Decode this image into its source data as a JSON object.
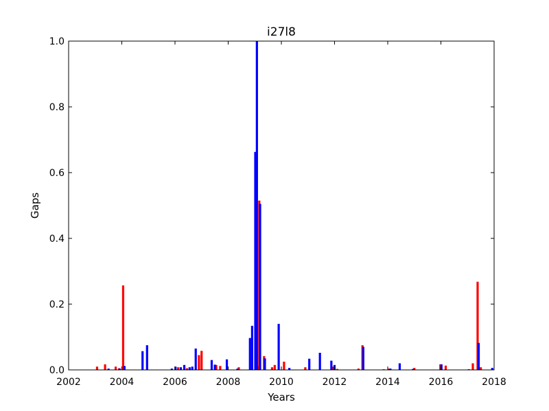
{
  "chart_data": {
    "type": "bar",
    "title": "i27l8",
    "xlabel": "Years",
    "ylabel": "Gaps",
    "xlim": [
      2002,
      2018
    ],
    "ylim": [
      0,
      1.0
    ],
    "xticks": [
      "2002",
      "2004",
      "2006",
      "2008",
      "2010",
      "2012",
      "2014",
      "2016",
      "2018"
    ],
    "yticks": [
      "0.0",
      "0.2",
      "0.4",
      "0.6",
      "0.8",
      "1.0"
    ],
    "grid": false,
    "colors": {
      "red": "#ff0000",
      "blue": "#0000ff"
    },
    "series": [
      {
        "color": "red",
        "points": [
          [
            2003.07,
            0.01
          ],
          [
            2003.37,
            0.017
          ],
          [
            2003.77,
            0.01
          ],
          [
            2003.9,
            0.005
          ],
          [
            2004.05,
            0.257
          ],
          [
            2006.12,
            0.008
          ],
          [
            2006.45,
            0.005
          ],
          [
            2006.9,
            0.045
          ],
          [
            2007.0,
            0.058
          ],
          [
            2007.55,
            0.015
          ],
          [
            2007.7,
            0.012
          ],
          [
            2008.4,
            0.008
          ],
          [
            2009.1,
            0.012
          ],
          [
            2009.17,
            0.515
          ],
          [
            2009.35,
            0.042
          ],
          [
            2009.65,
            0.008
          ],
          [
            2009.75,
            0.015
          ],
          [
            2010.1,
            0.025
          ],
          [
            2010.9,
            0.008
          ],
          [
            2011.95,
            0.01
          ],
          [
            2012.1,
            0.003
          ],
          [
            2012.9,
            0.004
          ],
          [
            2013.05,
            0.075
          ],
          [
            2013.85,
            0.002
          ],
          [
            2014.05,
            0.004
          ],
          [
            2015.0,
            0.006
          ],
          [
            2015.98,
            0.017
          ],
          [
            2016.18,
            0.013
          ],
          [
            2017.2,
            0.02
          ],
          [
            2017.38,
            0.268
          ],
          [
            2017.5,
            0.008
          ]
        ]
      },
      {
        "color": "blue",
        "points": [
          [
            2003.5,
            0.004
          ],
          [
            2003.92,
            0.004
          ],
          [
            2004.1,
            0.012
          ],
          [
            2004.78,
            0.057
          ],
          [
            2004.95,
            0.075
          ],
          [
            2005.88,
            0.004
          ],
          [
            2006.02,
            0.01
          ],
          [
            2006.22,
            0.008
          ],
          [
            2006.35,
            0.015
          ],
          [
            2006.55,
            0.008
          ],
          [
            2006.65,
            0.01
          ],
          [
            2006.78,
            0.065
          ],
          [
            2007.38,
            0.03
          ],
          [
            2007.5,
            0.016
          ],
          [
            2007.95,
            0.032
          ],
          [
            2008.35,
            0.004
          ],
          [
            2008.82,
            0.097
          ],
          [
            2008.9,
            0.134
          ],
          [
            2009.02,
            0.663
          ],
          [
            2009.08,
            1.0
          ],
          [
            2009.2,
            0.505
          ],
          [
            2009.38,
            0.035
          ],
          [
            2009.9,
            0.14
          ],
          [
            2010.3,
            0.006
          ],
          [
            2011.05,
            0.034
          ],
          [
            2011.45,
            0.052
          ],
          [
            2011.88,
            0.028
          ],
          [
            2012.0,
            0.015
          ],
          [
            2013.08,
            0.07
          ],
          [
            2014.1,
            0.004
          ],
          [
            2014.45,
            0.02
          ],
          [
            2014.95,
            0.003
          ],
          [
            2016.02,
            0.017
          ],
          [
            2017.05,
            0.002
          ],
          [
            2017.42,
            0.082
          ],
          [
            2017.93,
            0.006
          ]
        ]
      }
    ]
  }
}
